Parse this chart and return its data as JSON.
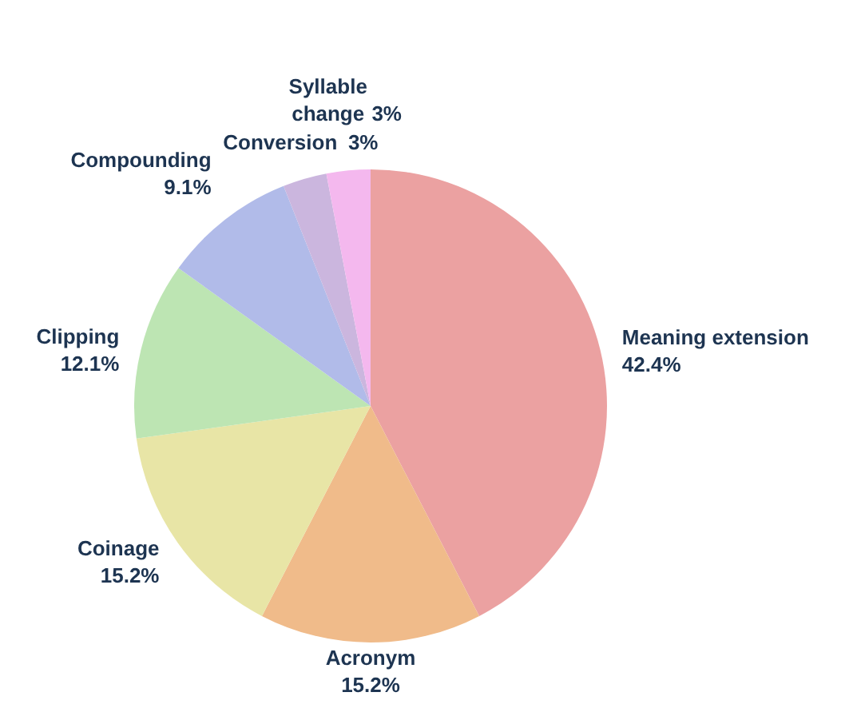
{
  "chart_data": {
    "type": "pie",
    "categories": [
      "Meaning extension",
      "Acronym",
      "Coinage",
      "Clipping",
      "Compounding",
      "Conversion",
      "Syllable change"
    ],
    "values": [
      42.4,
      15.2,
      15.2,
      12.1,
      9.1,
      3,
      3
    ],
    "colors": [
      "#eba1a1",
      "#f0bb8a",
      "#e8e5a6",
      "#bde5b3",
      "#b1bbe9",
      "#cbb6de",
      "#f4b8ee"
    ],
    "value_labels": [
      "42.4%",
      "15.2%",
      "15.2%",
      "12.1%",
      "9.1%",
      "3%",
      "3%"
    ]
  }
}
